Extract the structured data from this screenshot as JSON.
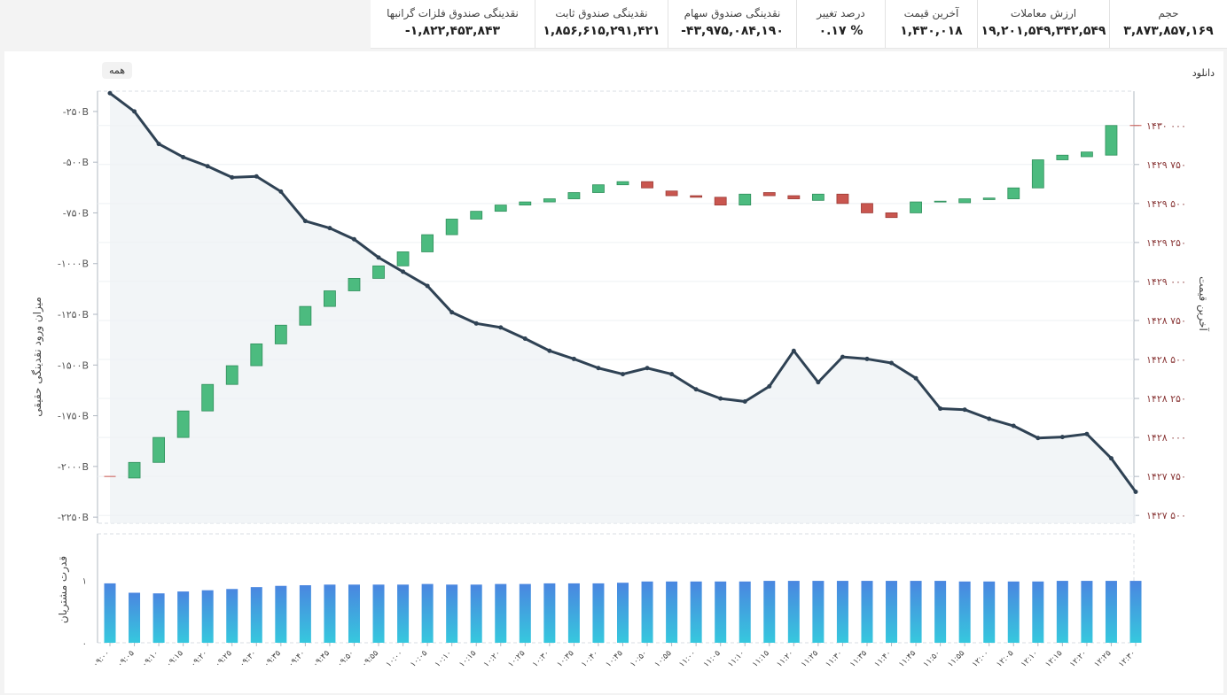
{
  "stats": [
    {
      "label": "حجم",
      "value": "۳,۸۷۳,۸۵۷,۱۶۹"
    },
    {
      "label": "ارزش معاملات",
      "value": "۱۹,۲۰۱,۵۴۹,۳۴۲,۵۴۹"
    },
    {
      "label": "آخرین قیمت",
      "value": "۱,۴۳۰,۰۱۸"
    },
    {
      "label": "درصد تغییر",
      "value": "۰.۱۷ %"
    },
    {
      "label": "نقدینگی صندوق سهام",
      "value": "-۴۳,۹۷۵,۰۸۴,۱۹۰"
    },
    {
      "label": "نقدینگی صندوق ثابت",
      "value": "۱,۸۵۶,۶۱۵,۲۹۱,۴۲۱"
    },
    {
      "label": "نقدینگی صندوق فلزات گرانبها",
      "value": "-۱,۸۲۲,۴۵۳,۸۴۳"
    }
  ],
  "buttons": {
    "download": "دانلود",
    "all": "همه"
  },
  "colors": {
    "line": "#2f4254",
    "up": "#4cbb7f",
    "down": "#c9564f",
    "bar_top": "#4a86e0",
    "bar_bottom": "#36c8de",
    "right_axis": "#8b3a3a"
  },
  "chart_data": {
    "type": "candlestick+line+bar",
    "x": [
      "۰۹:۰۰",
      "۰۹:۰۵",
      "۰۹:۱۰",
      "۰۹:۱۵",
      "۰۹:۲۰",
      "۰۹:۲۵",
      "۰۹:۳۰",
      "۰۹:۳۵",
      "۰۹:۴۰",
      "۰۹:۴۵",
      "۰۹:۵۰",
      "۰۹:۵۵",
      "۱۰:۰۰",
      "۱۰:۰۵",
      "۱۰:۱۰",
      "۱۰:۱۵",
      "۱۰:۲۰",
      "۱۰:۲۵",
      "۱۰:۳۰",
      "۱۰:۳۵",
      "۱۰:۴۰",
      "۱۰:۴۵",
      "۱۰:۵۰",
      "۱۰:۵۵",
      "۱۱:۰۰",
      "۱۱:۰۵",
      "۱۱:۱۰",
      "۱۱:۱۵",
      "۱۱:۲۰",
      "۱۱:۲۵",
      "۱۱:۳۰",
      "۱۱:۳۵",
      "۱۱:۴۰",
      "۱۱:۴۵",
      "۱۱:۵۰",
      "۱۱:۵۵",
      "۱۲:۰۰",
      "۱۲:۰۵",
      "۱۲:۱۰",
      "۱۲:۱۵",
      "۱۲:۲۰",
      "۱۲:۲۵",
      "۱۲:۳۰"
    ],
    "left_axis": {
      "label": "میزان ورود نقدینگی حقیقی",
      "ticks": [
        "-۲۵۰B",
        "-۵۰۰B",
        "-۷۵۰B",
        "-۱۰۰۰B",
        "-۱۲۵۰B",
        "-۱۵۰۰B",
        "-۱۷۵۰B",
        "-۲۰۰۰B",
        "-۲۲۵۰B"
      ],
      "range": [
        -2280,
        -150
      ]
    },
    "right_axis": {
      "label": "آخرین قیمت",
      "ticks": [
        "۱۴۳۰ ۰۰۰",
        "۱۴۲۹ ۷۵۰",
        "۱۴۲۹ ۵۰۰",
        "۱۴۲۹ ۲۵۰",
        "۱۴۲۹ ۰۰۰",
        "۱۴۲۸ ۷۵۰",
        "۱۴۲۸ ۵۰۰",
        "۱۴۲۸ ۲۵۰",
        "۱۴۲۸ ۰۰۰",
        "۱۴۲۷ ۷۵۰",
        "۱۴۲۷ ۵۰۰"
      ],
      "range": [
        1427450,
        1430220
      ]
    },
    "inflow": [
      -160,
      -250,
      -410,
      -475,
      -520,
      -575,
      -570,
      -645,
      -790,
      -825,
      -880,
      -970,
      -1040,
      -1110,
      -1240,
      -1295,
      -1315,
      -1370,
      -1430,
      -1470,
      -1515,
      -1545,
      -1515,
      -1545,
      -1620,
      -1665,
      -1680,
      -1605,
      -1430,
      -1585,
      -1460,
      -1470,
      -1490,
      -1565,
      -1715,
      -1720,
      -1765,
      -1800,
      -1860,
      -1855,
      -1840,
      -1960,
      -2125
    ],
    "candles": [
      {
        "o": 1427750,
        "c": 1427750
      },
      {
        "o": 1427740,
        "c": 1427840
      },
      {
        "o": 1427840,
        "c": 1428000
      },
      {
        "o": 1428000,
        "c": 1428170
      },
      {
        "o": 1428170,
        "c": 1428340
      },
      {
        "o": 1428340,
        "c": 1428460
      },
      {
        "o": 1428460,
        "c": 1428600
      },
      {
        "o": 1428600,
        "c": 1428720
      },
      {
        "o": 1428720,
        "c": 1428840
      },
      {
        "o": 1428840,
        "c": 1428940
      },
      {
        "o": 1428940,
        "c": 1429020
      },
      {
        "o": 1429020,
        "c": 1429100
      },
      {
        "o": 1429100,
        "c": 1429190
      },
      {
        "o": 1429190,
        "c": 1429300
      },
      {
        "o": 1429300,
        "c": 1429400
      },
      {
        "o": 1429400,
        "c": 1429450
      },
      {
        "o": 1429450,
        "c": 1429490
      },
      {
        "o": 1429490,
        "c": 1429510
      },
      {
        "o": 1429510,
        "c": 1429530
      },
      {
        "o": 1429530,
        "c": 1429570
      },
      {
        "o": 1429570,
        "c": 1429620
      },
      {
        "o": 1429620,
        "c": 1429640
      },
      {
        "o": 1429640,
        "c": 1429600
      },
      {
        "o": 1429580,
        "c": 1429550
      },
      {
        "o": 1429550,
        "c": 1429540
      },
      {
        "o": 1429540,
        "c": 1429490
      },
      {
        "o": 1429490,
        "c": 1429560
      },
      {
        "o": 1429570,
        "c": 1429550
      },
      {
        "o": 1429550,
        "c": 1429530
      },
      {
        "o": 1429520,
        "c": 1429560
      },
      {
        "o": 1429560,
        "c": 1429500
      },
      {
        "o": 1429500,
        "c": 1429440
      },
      {
        "o": 1429440,
        "c": 1429410
      },
      {
        "o": 1429440,
        "c": 1429510
      },
      {
        "o": 1429510,
        "c": 1429515
      },
      {
        "o": 1429505,
        "c": 1429530
      },
      {
        "o": 1429525,
        "c": 1429535
      },
      {
        "o": 1429530,
        "c": 1429600
      },
      {
        "o": 1429600,
        "c": 1429780
      },
      {
        "o": 1429780,
        "c": 1429810
      },
      {
        "o": 1429800,
        "c": 1429830
      },
      {
        "o": 1429810,
        "c": 1430000
      },
      {
        "o": 1430000,
        "c": 1430000
      }
    ],
    "buyer_power": {
      "label": "قدرت مشتریان",
      "ticks": [
        "۱",
        "۰"
      ],
      "range": [
        0,
        1.6
      ],
      "values": [
        0.95,
        0.8,
        0.79,
        0.82,
        0.84,
        0.86,
        0.89,
        0.91,
        0.92,
        0.93,
        0.93,
        0.93,
        0.93,
        0.94,
        0.93,
        0.93,
        0.94,
        0.94,
        0.95,
        0.95,
        0.95,
        0.96,
        0.98,
        0.98,
        0.98,
        0.98,
        0.98,
        0.99,
        0.99,
        0.99,
        0.99,
        0.99,
        0.99,
        0.99,
        0.99,
        0.98,
        0.98,
        0.98,
        0.98,
        0.99,
        0.99,
        0.99,
        0.99
      ]
    }
  }
}
